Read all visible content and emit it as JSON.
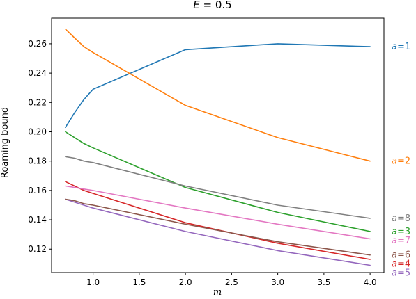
{
  "chart_data": {
    "type": "line",
    "title": "E = 0.5",
    "xlabel": "m",
    "ylabel": "Roaming bound",
    "xlim": [
      0.55,
      4.15
    ],
    "ylim": [
      0.104,
      0.2775
    ],
    "xticks": [
      1.0,
      1.5,
      2.0,
      2.5,
      3.0,
      3.5,
      4.0
    ],
    "xtick_labels": [
      "1.0",
      "1.5",
      "2.0",
      "2.5",
      "3.0",
      "3.5",
      "4.0"
    ],
    "yticks": [
      0.12,
      0.14,
      0.16,
      0.18,
      0.2,
      0.22,
      0.24,
      0.26
    ],
    "ytick_labels": [
      "0.12",
      "0.14",
      "0.16",
      "0.18",
      "0.20",
      "0.22",
      "0.24",
      "0.26"
    ],
    "grid": false,
    "legend": "inline labels at right end of each line",
    "series": [
      {
        "name": "a = 1",
        "color": "#1f77b4",
        "x": [
          0.7,
          0.8,
          0.9,
          1.0,
          2.0,
          3.0,
          4.0
        ],
        "y": [
          0.203,
          0.213,
          0.222,
          0.229,
          0.256,
          0.26,
          0.258
        ]
      },
      {
        "name": "a = 2",
        "color": "#ff7f0e",
        "x": [
          0.7,
          0.8,
          0.9,
          1.0,
          2.0,
          3.0,
          4.0
        ],
        "y": [
          0.27,
          0.264,
          0.258,
          0.254,
          0.218,
          0.196,
          0.18
        ]
      },
      {
        "name": "a = 3",
        "color": "#2ca02c",
        "x": [
          0.7,
          0.8,
          0.9,
          1.0,
          2.0,
          3.0,
          4.0
        ],
        "y": [
          0.2,
          0.196,
          0.192,
          0.189,
          0.162,
          0.145,
          0.132
        ]
      },
      {
        "name": "a = 4",
        "color": "#d62728",
        "x": [
          0.7,
          0.8,
          0.9,
          1.0,
          2.0,
          3.0,
          4.0
        ],
        "y": [
          0.166,
          0.163,
          0.16,
          0.158,
          0.138,
          0.124,
          0.113
        ]
      },
      {
        "name": "a = 5",
        "color": "#9467bd",
        "x": [
          0.7,
          0.8,
          0.9,
          1.0,
          2.0,
          3.0,
          4.0
        ],
        "y": [
          0.154,
          0.152,
          0.15,
          0.148,
          0.132,
          0.119,
          0.109
        ]
      },
      {
        "name": "a = 6",
        "color": "#8c564b",
        "x": [
          0.7,
          0.8,
          0.9,
          1.0,
          2.0,
          3.0,
          4.0
        ],
        "y": [
          0.154,
          0.153,
          0.151,
          0.15,
          0.137,
          0.125,
          0.116
        ]
      },
      {
        "name": "a = 7",
        "color": "#e377c2",
        "x": [
          0.7,
          0.8,
          0.9,
          1.0,
          2.0,
          3.0,
          4.0
        ],
        "y": [
          0.163,
          0.162,
          0.161,
          0.16,
          0.148,
          0.137,
          0.127
        ]
      },
      {
        "name": "a = 8",
        "color": "#7f7f7f",
        "x": [
          0.7,
          0.8,
          0.9,
          1.0,
          2.0,
          3.0,
          4.0
        ],
        "y": [
          0.183,
          0.182,
          0.18,
          0.179,
          0.163,
          0.15,
          0.141
        ]
      }
    ]
  }
}
